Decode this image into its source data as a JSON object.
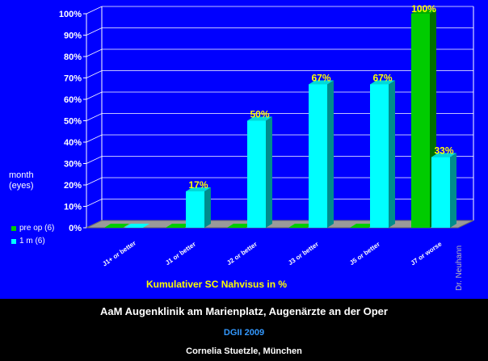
{
  "chart_data": {
    "type": "bar",
    "categories": [
      "J1+ or better",
      "J1 or better",
      "J2 or better",
      "J3 or better",
      "J5 or better",
      "J7 or worse"
    ],
    "series": [
      {
        "name": "pre op (6)",
        "values": [
          0,
          0,
          0,
          0,
          0,
          100
        ],
        "color": "#00cc00"
      },
      {
        "name": "1 m (6)",
        "values": [
          0,
          17,
          50,
          67,
          67,
          33
        ],
        "color": "#00ffff"
      }
    ],
    "data_labels": [
      "",
      "17%",
      "50%",
      "67%",
      "67%",
      "33%"
    ],
    "top_label": "100%",
    "yticks": [
      "0%",
      "10%",
      "20%",
      "30%",
      "40%",
      "50%",
      "60%",
      "70%",
      "80%",
      "90%",
      "100%"
    ],
    "ylim": [
      0,
      100
    ],
    "xlabel": "Kumulativer SC Nahvisus in %",
    "ylabel_lines": [
      "month",
      "(eyes)"
    ],
    "credit": "Dr. Neuhann",
    "grid": true,
    "legend_position": "left"
  },
  "footer": {
    "line1": "AaM Augenklinik am Marienplatz, Augenärzte an der Oper",
    "line2": "DGII 2009",
    "line3": "Cornelia Stuetzle, München"
  }
}
